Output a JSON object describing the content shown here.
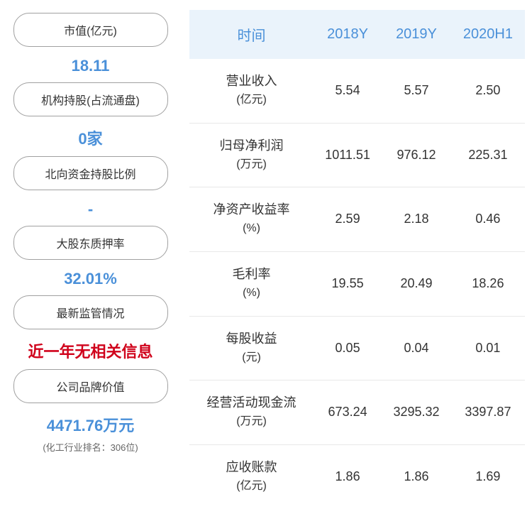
{
  "sidebar": {
    "metrics": [
      {
        "label": "市值(亿元)",
        "value": "18.11",
        "color": "blue"
      },
      {
        "label": "机构持股(占流通盘)",
        "value": "0家",
        "color": "blue"
      },
      {
        "label": "北向资金持股比例",
        "value": "-",
        "color": "blue"
      },
      {
        "label": "大股东质押率",
        "value": "32.01%",
        "color": "blue"
      },
      {
        "label": "最新监管情况",
        "value": "近一年无相关信息",
        "color": "red"
      },
      {
        "label": "公司品牌价值",
        "value": "4471.76万元",
        "color": "blue",
        "subtitle": "(化工行业排名：306位)"
      }
    ]
  },
  "table": {
    "headers": [
      "时间",
      "2018Y",
      "2019Y",
      "2020H1"
    ],
    "rows": [
      {
        "label": "营业收入",
        "unit": "(亿元)",
        "values": [
          "5.54",
          "5.57",
          "2.50"
        ]
      },
      {
        "label": "归母净利润",
        "unit": "(万元)",
        "values": [
          "1011.51",
          "976.12",
          "225.31"
        ]
      },
      {
        "label": "净资产收益率",
        "unit": "(%)",
        "values": [
          "2.59",
          "2.18",
          "0.46"
        ]
      },
      {
        "label": "毛利率",
        "unit": "(%)",
        "values": [
          "19.55",
          "20.49",
          "18.26"
        ]
      },
      {
        "label": "每股收益",
        "unit": "(元)",
        "values": [
          "0.05",
          "0.04",
          "0.01"
        ]
      },
      {
        "label": "经营活动现金流",
        "unit": "(万元)",
        "values": [
          "673.24",
          "3295.32",
          "3397.87"
        ]
      },
      {
        "label": "应收账款",
        "unit": "(亿元)",
        "values": [
          "1.86",
          "1.86",
          "1.69"
        ]
      }
    ]
  }
}
